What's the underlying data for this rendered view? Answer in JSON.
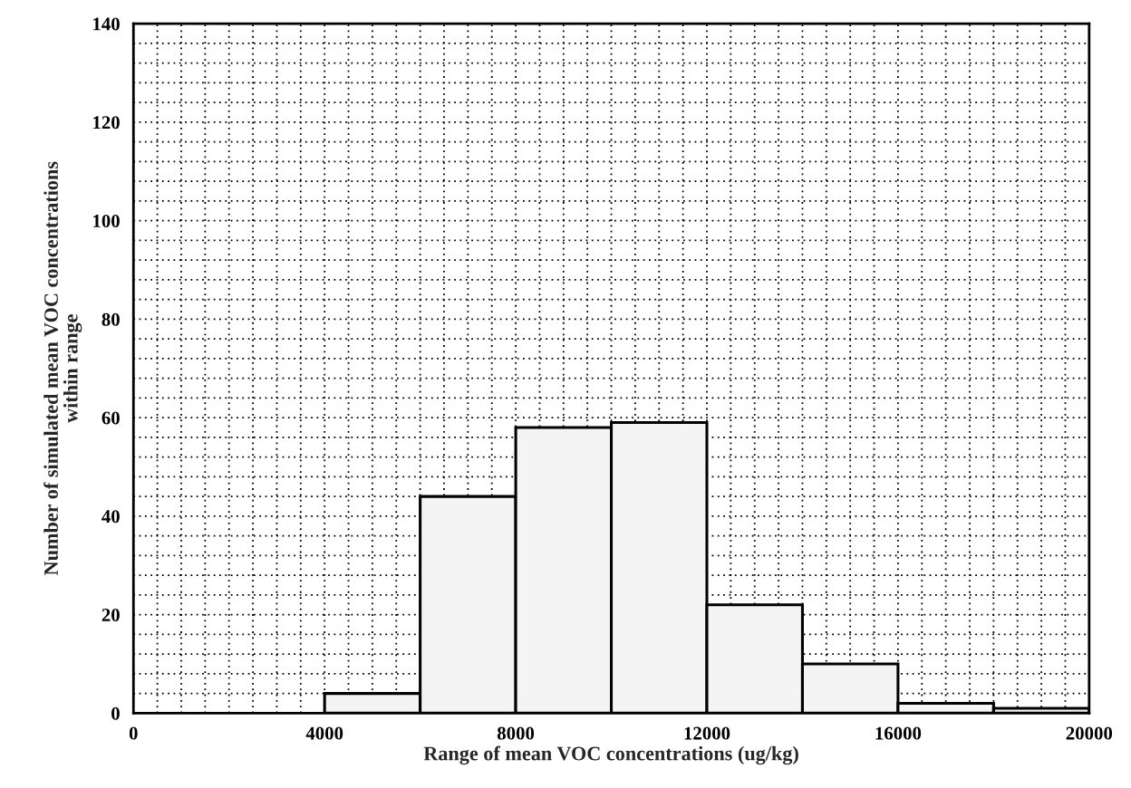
{
  "chart_data": {
    "type": "histogram",
    "xlabel": "Range of mean VOC concentrations (ug/kg)",
    "ylabel": "Number of simulated mean VOC concentrations\nwithin range",
    "bins": [
      4000,
      6000,
      8000,
      10000,
      12000,
      14000,
      16000,
      18000,
      20000
    ],
    "values": [
      4,
      44,
      58,
      59,
      22,
      10,
      2,
      1
    ],
    "color": "#f4f4f4",
    "xlim": [
      0,
      20000
    ],
    "ylim": [
      0,
      140
    ],
    "xticks": [
      0,
      {
        "value": 500,
        "label": null
      },
      {
        "value": 1000,
        "label": null
      },
      {
        "value": 1500,
        "label": null
      },
      {
        "value": 2000,
        "label": null
      },
      {
        "value": 2500,
        "label": null
      },
      {
        "value": 3000,
        "label": null
      },
      {
        "value": 3500,
        "label": null
      },
      4000,
      {
        "value": 4500,
        "label": null
      },
      {
        "value": 5000,
        "label": null
      },
      {
        "value": 5500,
        "label": null
      },
      {
        "value": 6000,
        "label": null
      },
      {
        "value": 6500,
        "label": null
      },
      {
        "value": 7000,
        "label": null
      },
      {
        "value": 7500,
        "label": null
      },
      8000,
      {
        "value": 8500,
        "label": null
      },
      {
        "value": 9000,
        "label": null
      },
      {
        "value": 9500,
        "label": null
      },
      {
        "value": 10000,
        "label": null
      },
      {
        "value": 10500,
        "label": null
      },
      {
        "value": 11000,
        "label": null
      },
      {
        "value": 11500,
        "label": null
      },
      12000,
      {
        "value": 12500,
        "label": null
      },
      {
        "value": 13000,
        "label": null
      },
      {
        "value": 13500,
        "label": null
      },
      {
        "value": 14000,
        "label": null
      },
      {
        "value": 14500,
        "label": null
      },
      {
        "value": 15000,
        "label": null
      },
      {
        "value": 15500,
        "label": null
      },
      16000,
      {
        "value": 16500,
        "label": null
      },
      {
        "value": 17000,
        "label": null
      },
      {
        "value": 17500,
        "label": null
      },
      {
        "value": 18000,
        "label": null
      },
      {
        "value": 18500,
        "label": null
      },
      {
        "value": 19000,
        "label": null
      },
      {
        "value": 19500,
        "label": null
      },
      20000
    ],
    "yticks": [
      0,
      {
        "value": 4,
        "label": null
      },
      {
        "value": 8,
        "label": null
      },
      {
        "value": 12,
        "label": null
      },
      {
        "value": 16,
        "label": null
      },
      20,
      {
        "value": 24,
        "label": null
      },
      {
        "value": 28,
        "label": null
      },
      {
        "value": 32,
        "label": null
      },
      {
        "value": 36,
        "label": null
      },
      40,
      {
        "value": 44,
        "label": null
      },
      {
        "value": 48,
        "label": null
      },
      {
        "value": 52,
        "label": null
      },
      {
        "value": 56,
        "label": null
      },
      60,
      {
        "value": 64,
        "label": null
      },
      {
        "value": 68,
        "label": null
      },
      {
        "value": 72,
        "label": null
      },
      {
        "value": 76,
        "label": null
      },
      80,
      {
        "value": 84,
        "label": null
      },
      {
        "value": 88,
        "label": null
      },
      {
        "value": 92,
        "label": null
      },
      {
        "value": 96,
        "label": null
      },
      100,
      {
        "value": 104,
        "label": null
      },
      {
        "value": 108,
        "label": null
      },
      {
        "value": 112,
        "label": null
      },
      {
        "value": 116,
        "label": null
      },
      120,
      {
        "value": 124,
        "label": null
      },
      {
        "value": 128,
        "label": null
      },
      {
        "value": 132,
        "label": null
      },
      {
        "value": 136,
        "label": null
      },
      140
    ],
    "grid": true
  }
}
